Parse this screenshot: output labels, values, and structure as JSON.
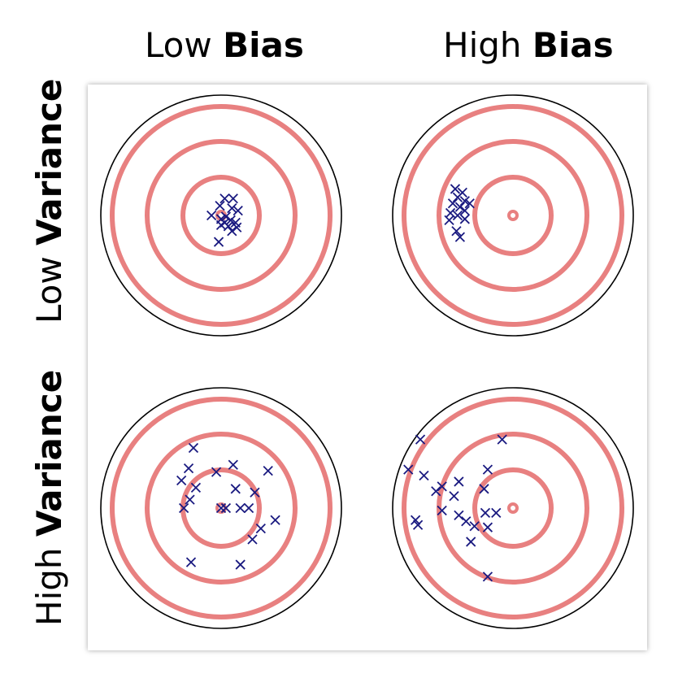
{
  "columns": [
    {
      "plain": "Low ",
      "bold": "Bias"
    },
    {
      "plain": "High ",
      "bold": "Bias"
    }
  ],
  "rows": [
    {
      "plain": "Low ",
      "bold": "Variance"
    },
    {
      "plain": "High ",
      "bold": "Variance"
    }
  ],
  "colors": {
    "ring": "#e88080",
    "outer": "#000000",
    "marker": "#1a1a80"
  },
  "targets": [
    {
      "name": "low-bias-low-variance",
      "hits": [
        [
          0.03,
          -0.14
        ],
        [
          0.1,
          -0.14
        ],
        [
          -0.01,
          -0.08
        ],
        [
          0.09,
          -0.06
        ],
        [
          0.14,
          -0.04
        ],
        [
          -0.08,
          0.0
        ],
        [
          0.0,
          0.03
        ],
        [
          0.04,
          0.01
        ],
        [
          0.08,
          0.04
        ],
        [
          0.12,
          0.06
        ],
        [
          0.03,
          0.06
        ],
        [
          0.06,
          0.09
        ],
        [
          0.13,
          0.1
        ],
        [
          0.09,
          0.13
        ],
        [
          0.0,
          0.08
        ],
        [
          -0.02,
          0.22
        ]
      ]
    },
    {
      "name": "high-bias-low-variance",
      "hits": [
        [
          -0.48,
          -0.22
        ],
        [
          -0.42,
          -0.19
        ],
        [
          -0.46,
          -0.15
        ],
        [
          -0.4,
          -0.12
        ],
        [
          -0.5,
          -0.1
        ],
        [
          -0.36,
          -0.1
        ],
        [
          -0.44,
          -0.07
        ],
        [
          -0.4,
          -0.04
        ],
        [
          -0.52,
          -0.02
        ],
        [
          -0.46,
          0.0
        ],
        [
          -0.53,
          0.04
        ],
        [
          -0.4,
          0.03
        ],
        [
          -0.47,
          0.13
        ],
        [
          -0.44,
          0.18
        ]
      ]
    },
    {
      "name": "low-bias-high-variance",
      "hits": [
        [
          -0.23,
          -0.5
        ],
        [
          -0.27,
          -0.33
        ],
        [
          -0.33,
          -0.23
        ],
        [
          -0.04,
          -0.3
        ],
        [
          0.1,
          -0.36
        ],
        [
          0.39,
          -0.31
        ],
        [
          0.12,
          -0.16
        ],
        [
          -0.21,
          -0.17
        ],
        [
          0.28,
          -0.13
        ],
        [
          -0.26,
          -0.07
        ],
        [
          -0.31,
          0.0
        ],
        [
          0.0,
          0.0
        ],
        [
          0.04,
          0.0
        ],
        [
          0.16,
          0.0
        ],
        [
          0.23,
          0.0
        ],
        [
          0.45,
          0.1
        ],
        [
          0.33,
          0.17
        ],
        [
          0.26,
          0.26
        ],
        [
          -0.25,
          0.45
        ],
        [
          0.16,
          0.47
        ]
      ]
    },
    {
      "name": "high-bias-high-variance",
      "hits": [
        [
          -0.77,
          -0.57
        ],
        [
          -0.09,
          -0.57
        ],
        [
          -0.87,
          -0.32
        ],
        [
          -0.74,
          -0.27
        ],
        [
          -0.21,
          -0.32
        ],
        [
          -0.45,
          -0.22
        ],
        [
          -0.59,
          -0.18
        ],
        [
          -0.64,
          -0.14
        ],
        [
          -0.24,
          -0.16
        ],
        [
          -0.49,
          -0.1
        ],
        [
          -0.59,
          0.02
        ],
        [
          -0.81,
          0.1
        ],
        [
          -0.79,
          0.14
        ],
        [
          -0.45,
          0.06
        ],
        [
          -0.23,
          0.04
        ],
        [
          -0.14,
          0.04
        ],
        [
          -0.39,
          0.11
        ],
        [
          -0.32,
          0.15
        ],
        [
          -0.21,
          0.16
        ],
        [
          -0.35,
          0.28
        ],
        [
          -0.21,
          0.57
        ]
      ]
    }
  ]
}
